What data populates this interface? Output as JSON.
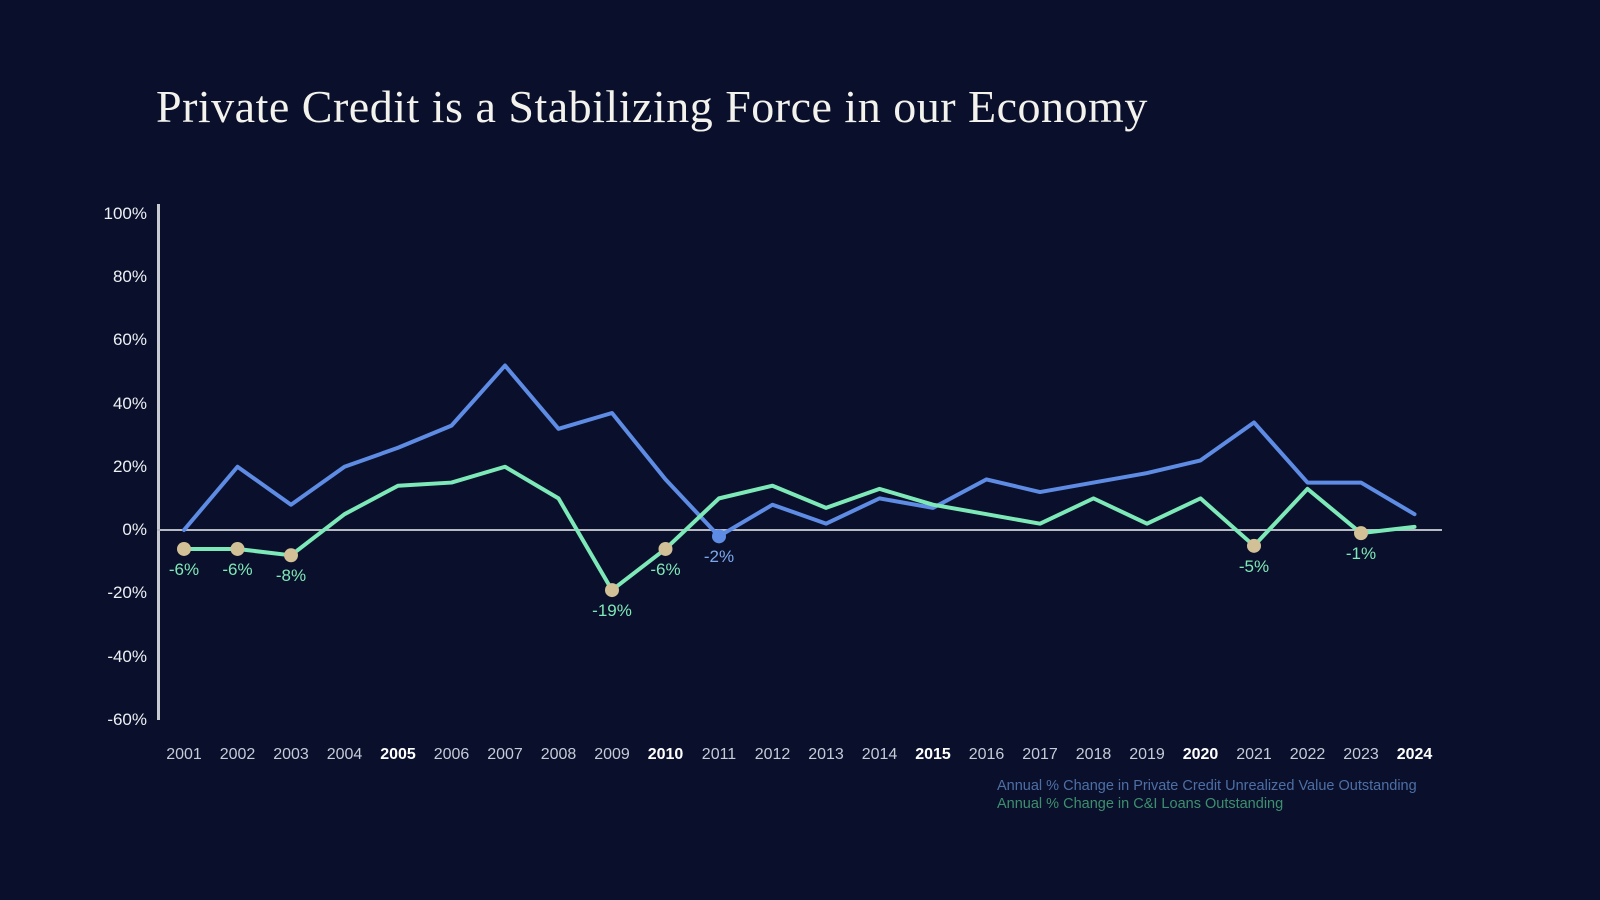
{
  "title": "Private Credit is a Stabilizing Force in our Economy",
  "chart_data": {
    "type": "line",
    "x": [
      "2001",
      "2002",
      "2003",
      "2004",
      "2005",
      "2006",
      "2007",
      "2008",
      "2009",
      "2010",
      "2011",
      "2012",
      "2013",
      "2014",
      "2015",
      "2016",
      "2017",
      "2018",
      "2019",
      "2020",
      "2021",
      "2022",
      "2023",
      "2024"
    ],
    "bold_x_labels": [
      "2005",
      "2010",
      "2015",
      "2020",
      "2024"
    ],
    "series": [
      {
        "name": "Annual % Change in Private Credit Unrealized Value Outstanding",
        "color": "#5e8ce4",
        "values": [
          0,
          20,
          8,
          20,
          26,
          33,
          52,
          32,
          37,
          16,
          -2,
          8,
          2,
          10,
          7,
          16,
          12,
          15,
          18,
          22,
          34,
          15,
          15,
          5
        ]
      },
      {
        "name": "Annual % Change in C&I Loans Outstanding",
        "color": "#7ee9b8",
        "values": [
          -6,
          -6,
          -8,
          5,
          14,
          15,
          20,
          10,
          -19,
          -6,
          10,
          14,
          7,
          13,
          8,
          5,
          2,
          10,
          2,
          10,
          -5,
          13,
          -1,
          1
        ]
      }
    ],
    "ylim": [
      -60,
      100
    ],
    "yticks": [
      {
        "value": 100,
        "label": "100%"
      },
      {
        "value": 80,
        "label": "80%"
      },
      {
        "value": 60,
        "label": "60%"
      },
      {
        "value": 40,
        "label": "40%"
      },
      {
        "value": 20,
        "label": "20%"
      },
      {
        "value": 0,
        "label": "0%"
      },
      {
        "value": -20,
        "label": "-20%"
      },
      {
        "value": -40,
        "label": "-40%"
      },
      {
        "value": -60,
        "label": "-60%"
      }
    ],
    "grid": "zero-baseline-only",
    "legend_position": "bottom-right",
    "annotations": [
      {
        "series": 1,
        "year": "2001",
        "label": "-6%"
      },
      {
        "series": 1,
        "year": "2002",
        "label": "-6%"
      },
      {
        "series": 1,
        "year": "2003",
        "label": "-8%"
      },
      {
        "series": 1,
        "year": "2009",
        "label": "-19%"
      },
      {
        "series": 1,
        "year": "2010",
        "label": "-6%"
      },
      {
        "series": 0,
        "year": "2011",
        "label": "-2%"
      },
      {
        "series": 1,
        "year": "2021",
        "label": "-5%"
      },
      {
        "series": 1,
        "year": "2023",
        "label": "-1%"
      }
    ]
  },
  "colors": {
    "background": "#0a102b",
    "axis_line": "#c9cbd3",
    "zero_line": "#b7b9c3",
    "y_label": "#eef0f5",
    "x_label": "#c6cbd8",
    "x_label_bold": "#ffffff",
    "title": "#f3f2ec",
    "dot_series0": "#5e8ce4",
    "dot_series1": "#d2c096",
    "annotation_text_series0": "#7da8f0",
    "annotation_text_series1": "#7ee9b8",
    "legend_line1": "#4d6fa6",
    "legend_line2": "#3d8f6f"
  }
}
